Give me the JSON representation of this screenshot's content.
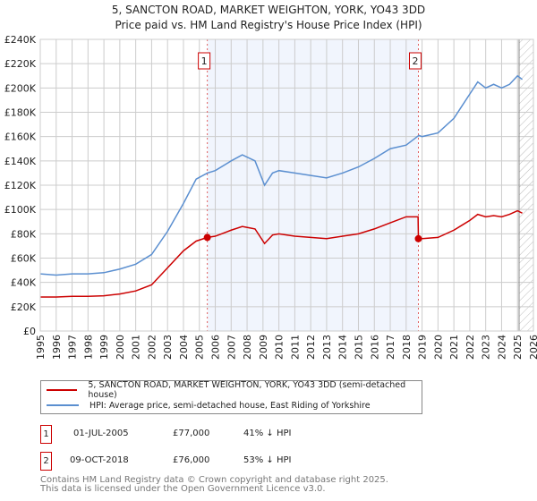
{
  "chart_data": {
    "type": "line",
    "title": "5, SANCTON ROAD, MARKET WEIGHTON, YORK, YO43 3DD",
    "subtitle": "Price paid vs. HM Land Registry's House Price Index (HPI)",
    "xlim": [
      1995,
      2026
    ],
    "ylim": [
      0,
      240000
    ],
    "x_ticks": [
      "1995",
      "1996",
      "1997",
      "1998",
      "1999",
      "2000",
      "2001",
      "2002",
      "2003",
      "2004",
      "2005",
      "2006",
      "2007",
      "2008",
      "2009",
      "2010",
      "2011",
      "2012",
      "2013",
      "2014",
      "2015",
      "2016",
      "2017",
      "2018",
      "2019",
      "2020",
      "2021",
      "2022",
      "2023",
      "2024",
      "2025",
      "2026"
    ],
    "y_ticks": [
      "£0",
      "£20K",
      "£40K",
      "£60K",
      "£80K",
      "£100K",
      "£120K",
      "£140K",
      "£160K",
      "£180K",
      "£200K",
      "£220K",
      "£240K"
    ],
    "grid": true,
    "shaded_period": [
      2005.5,
      2018.77
    ],
    "hatched_from": 2025.1,
    "series": [
      {
        "name": "5, SANCTON ROAD, MARKET WEIGHTON, YORK, YO43 3DD (semi-detached house)",
        "color": "#cc0000",
        "x": [
          1995,
          1996,
          1997,
          1998,
          1999,
          2000,
          2001,
          2002,
          2003,
          2004,
          2004.8,
          2005.5,
          2006,
          2007,
          2007.7,
          2008.5,
          2009.1,
          2009.6,
          2010,
          2011,
          2012,
          2013,
          2014,
          2015,
          2016,
          2017,
          2018,
          2018.75,
          2018.77,
          2019,
          2020,
          2021,
          2021.5,
          2022,
          2022.5,
          2023,
          2023.5,
          2024,
          2024.5,
          2025,
          2025.3
        ],
        "y": [
          28000,
          28000,
          28500,
          28500,
          29000,
          30500,
          33000,
          38000,
          52000,
          66000,
          74000,
          77000,
          78000,
          83000,
          86000,
          84000,
          72000,
          79000,
          80000,
          78000,
          77000,
          76000,
          78000,
          80000,
          84000,
          89000,
          94000,
          94000,
          76000,
          76000,
          77000,
          83000,
          87000,
          91000,
          96000,
          94000,
          95000,
          94000,
          96000,
          99000,
          97000
        ]
      },
      {
        "name": "HPI: Average price, semi-detached house, East Riding of Yorkshire",
        "color": "#5b8fd0",
        "x": [
          1995,
          1996,
          1997,
          1998,
          1999,
          2000,
          2001,
          2002,
          2003,
          2004,
          2004.8,
          2005.5,
          2006,
          2007,
          2007.7,
          2008.5,
          2009.1,
          2009.6,
          2010,
          2011,
          2012,
          2013,
          2014,
          2015,
          2016,
          2017,
          2018,
          2018.8,
          2019,
          2020,
          2021,
          2021.5,
          2022,
          2022.5,
          2023,
          2023.5,
          2024,
          2024.5,
          2025,
          2025.3
        ],
        "y": [
          47000,
          46000,
          47000,
          47000,
          48000,
          51000,
          55000,
          63000,
          82000,
          105000,
          125000,
          130000,
          132000,
          140000,
          145000,
          140000,
          120000,
          130000,
          132000,
          130000,
          128000,
          126000,
          130000,
          135000,
          142000,
          150000,
          153000,
          161000,
          160000,
          163000,
          175000,
          185000,
          195000,
          205000,
          200000,
          203000,
          200000,
          203000,
          210000,
          207000
        ]
      }
    ],
    "markers": [
      {
        "label": "1",
        "x": 2005.5,
        "y": 77000
      },
      {
        "label": "2",
        "x": 2018.77,
        "y": 76000
      }
    ]
  },
  "legend": {
    "items": [
      "5, SANCTON ROAD, MARKET WEIGHTON, YORK, YO43 3DD (semi-detached house)",
      "HPI: Average price, semi-detached house, East Riding of Yorkshire"
    ]
  },
  "sales": [
    {
      "num": "1",
      "date": "01-JUL-2005",
      "price": "£77,000",
      "hpi": "41% ↓ HPI"
    },
    {
      "num": "2",
      "date": "09-OCT-2018",
      "price": "£76,000",
      "hpi": "53% ↓ HPI"
    }
  ],
  "footer": [
    "Contains HM Land Registry data © Crown copyright and database right 2025.",
    "This data is licensed under the Open Government Licence v3.0."
  ]
}
